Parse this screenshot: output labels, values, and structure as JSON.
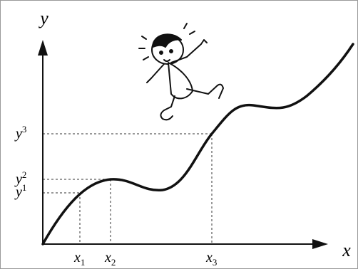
{
  "axes": {
    "y": "y",
    "x": "x"
  },
  "y_marks": [
    {
      "var": "y",
      "index": "3"
    },
    {
      "var": "y",
      "index": "2"
    },
    {
      "var": "y",
      "index": "1"
    }
  ],
  "x_marks": [
    {
      "var": "x",
      "index": "1"
    },
    {
      "var": "x",
      "index": "2"
    },
    {
      "var": "x",
      "index": "3"
    }
  ]
}
